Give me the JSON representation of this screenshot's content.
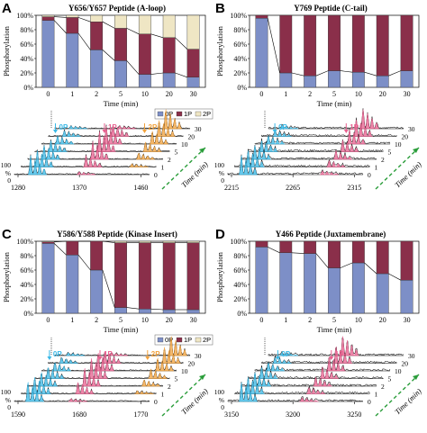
{
  "colors": {
    "p0": "#7d8fc7",
    "p1": "#8a2f4a",
    "p2": "#efe6c4",
    "cyan": "#39b8e6",
    "pink": "#e8608f",
    "orange": "#f2a23c",
    "green": "#2a9d3a"
  },
  "legend": [
    "0P",
    "1P",
    "2P"
  ],
  "time_axis_label": "Time (min)",
  "y_axis_label": "Phosphorylation",
  "spectra_axis_label": "Time (min)",
  "percent_label": "%",
  "chart_data": [
    {
      "letter": "A",
      "type": "bar",
      "title": "Y656/Y657 Peptide (A-loop)",
      "ylabel": "Phosphorylation",
      "xlabel": "Time (min)",
      "yticks": [
        "0%",
        "20%",
        "40%",
        "60%",
        "80%",
        "100%"
      ],
      "ylim": [
        0,
        100
      ],
      "categories": [
        "0",
        "1",
        "2",
        "5",
        "10",
        "20",
        "30"
      ],
      "series": [
        {
          "name": "0P",
          "values": [
            93,
            75,
            52,
            37,
            18,
            20,
            14
          ]
        },
        {
          "name": "1P",
          "values": [
            5,
            22,
            39,
            45,
            56,
            49,
            39
          ]
        },
        {
          "name": "2P",
          "values": [
            2,
            3,
            9,
            18,
            26,
            31,
            47
          ]
        }
      ]
    },
    {
      "letter": "B",
      "type": "bar",
      "title": "Y769 Peptide (C-tail)",
      "ylabel": "Phosphorylation",
      "xlabel": "Time (min)",
      "yticks": [
        "0%",
        "20%",
        "40%",
        "60%",
        "80%",
        "100%"
      ],
      "ylim": [
        0,
        100
      ],
      "categories": [
        "0",
        "1",
        "2",
        "5",
        "10",
        "20",
        "30"
      ],
      "series": [
        {
          "name": "0P",
          "values": [
            96,
            20,
            16,
            23,
            21,
            16,
            23
          ]
        },
        {
          "name": "1P",
          "values": [
            4,
            80,
            84,
            77,
            79,
            84,
            77
          ]
        }
      ]
    },
    {
      "letter": "C",
      "type": "bar",
      "title": "Y586/Y588 Peptide (Kinase Insert)",
      "ylabel": "Phosphorylation",
      "xlabel": "Time (min)",
      "yticks": [
        "0%",
        "20%",
        "40%",
        "60%",
        "80%",
        "100%"
      ],
      "ylim": [
        0,
        100
      ],
      "categories": [
        "0",
        "1",
        "2",
        "5",
        "10",
        "20",
        "30"
      ],
      "series": [
        {
          "name": "0P",
          "values": [
            97,
            81,
            60,
            8,
            6,
            5,
            5
          ]
        },
        {
          "name": "1P",
          "values": [
            2,
            19,
            40,
            90,
            92,
            93,
            93
          ]
        },
        {
          "name": "2P",
          "values": [
            1,
            0,
            0,
            2,
            2,
            2,
            2
          ]
        }
      ]
    },
    {
      "letter": "D",
      "type": "bar",
      "title": "Y466 Peptide (Juxtamembrane)",
      "ylabel": "Phosphorylation",
      "xlabel": "Time (min)",
      "yticks": [
        "0%",
        "20%",
        "40%",
        "60%",
        "80%",
        "100%"
      ],
      "ylim": [
        0,
        100
      ],
      "categories": [
        "0",
        "1",
        "2",
        "5",
        "10",
        "20",
        "30"
      ],
      "series": [
        {
          "name": "0P",
          "values": [
            92,
            84,
            83,
            63,
            70,
            55,
            46
          ]
        },
        {
          "name": "1P",
          "values": [
            8,
            16,
            17,
            37,
            30,
            45,
            54
          ]
        }
      ]
    }
  ],
  "spectra": [
    {
      "letter": "A",
      "mz_ticks": [
        "1280",
        "1370",
        "1460"
      ],
      "times": [
        "0",
        "1",
        "2",
        "5",
        "10",
        "20",
        "30"
      ],
      "peak_labels": [
        "0P",
        "1P",
        "2P"
      ],
      "percent_ticks": [
        "100",
        "0"
      ]
    },
    {
      "letter": "B",
      "mz_ticks": [
        "2215",
        "2265",
        "2315"
      ],
      "times": [
        "0",
        "1",
        "2",
        "5",
        "10",
        "20",
        "30"
      ],
      "peak_labels": [
        "0P",
        "1P"
      ],
      "percent_ticks": [
        "100",
        "0"
      ]
    },
    {
      "letter": "C",
      "mz_ticks": [
        "1590",
        "1680",
        "1770"
      ],
      "times": [
        "0",
        "1",
        "2",
        "5",
        "10",
        "20",
        "30"
      ],
      "peak_labels": [
        "0P",
        "1P",
        "2P"
      ],
      "percent_ticks": [
        "100",
        "0"
      ]
    },
    {
      "letter": "D",
      "mz_ticks": [
        "3150",
        "3200",
        "3250"
      ],
      "times": [
        "0",
        "1",
        "2",
        "5",
        "10",
        "20",
        "30"
      ],
      "peak_labels": [
        "0P",
        "1P"
      ],
      "percent_ticks": [
        "100",
        "0"
      ]
    }
  ]
}
